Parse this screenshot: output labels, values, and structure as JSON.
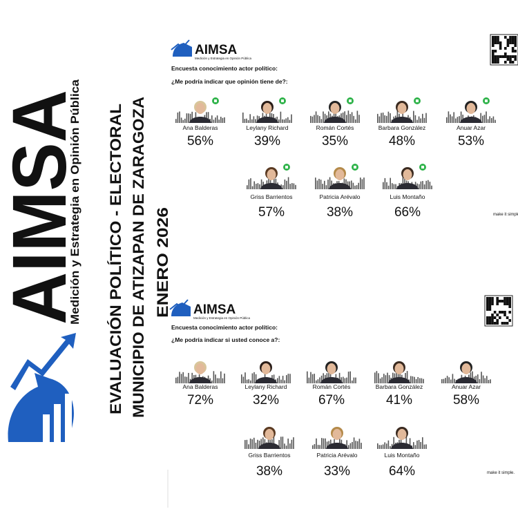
{
  "sidebar": {
    "brand": "AIMSA",
    "tagline": "Medición y Estrategia en Opinión Pública",
    "title_lines": [
      "EVALUACIÓN POLÍTICO - ELECTORAL",
      "MUNICIPIO DE ATIZAPAN DE ZARAGOZA",
      "ENERO 2026"
    ]
  },
  "panels": [
    {
      "brand": "AIMSA",
      "brand_tagline": "Medición y Estrategia en Opinión Pública",
      "survey": "Encuesta conocimiento actor político:",
      "question": "¿Me podría indicar que opinión tiene de?:",
      "footer": "make it simple.",
      "candidates": [
        {
          "name": "Ana Balderas",
          "percent": "56%"
        },
        {
          "name": "Leylany Richard",
          "percent": "39%"
        },
        {
          "name": "Román Cortés",
          "percent": "35%"
        },
        {
          "name": "Barbara González",
          "percent": "48%"
        },
        {
          "name": "Anuar Azar",
          "percent": "53%"
        },
        {
          "name": "Griss Barrientos",
          "percent": "57%"
        },
        {
          "name": "Patricia Arévalo",
          "percent": "38%"
        },
        {
          "name": "Luis Montaño",
          "percent": "66%"
        }
      ]
    },
    {
      "brand": "AIMSA",
      "brand_tagline": "Medición y Estrategia en Opinión Pública",
      "survey": "Encuesta conocimiento actor político:",
      "question": "¿Me podría indicar si usted conoce a?:",
      "footer": "make it simple.",
      "candidates": [
        {
          "name": "Ana Balderas",
          "percent": "72%"
        },
        {
          "name": "Leylany Richard",
          "percent": "32%"
        },
        {
          "name": "Román Cortés",
          "percent": "67%"
        },
        {
          "name": "Barbara González",
          "percent": "41%"
        },
        {
          "name": "Anuar Azar",
          "percent": "58%"
        },
        {
          "name": "Griss Barrientos",
          "percent": "38%"
        },
        {
          "name": "Patricia Arévalo",
          "percent": "33%"
        },
        {
          "name": "Luis Montaño",
          "percent": "64%"
        }
      ]
    }
  ]
}
